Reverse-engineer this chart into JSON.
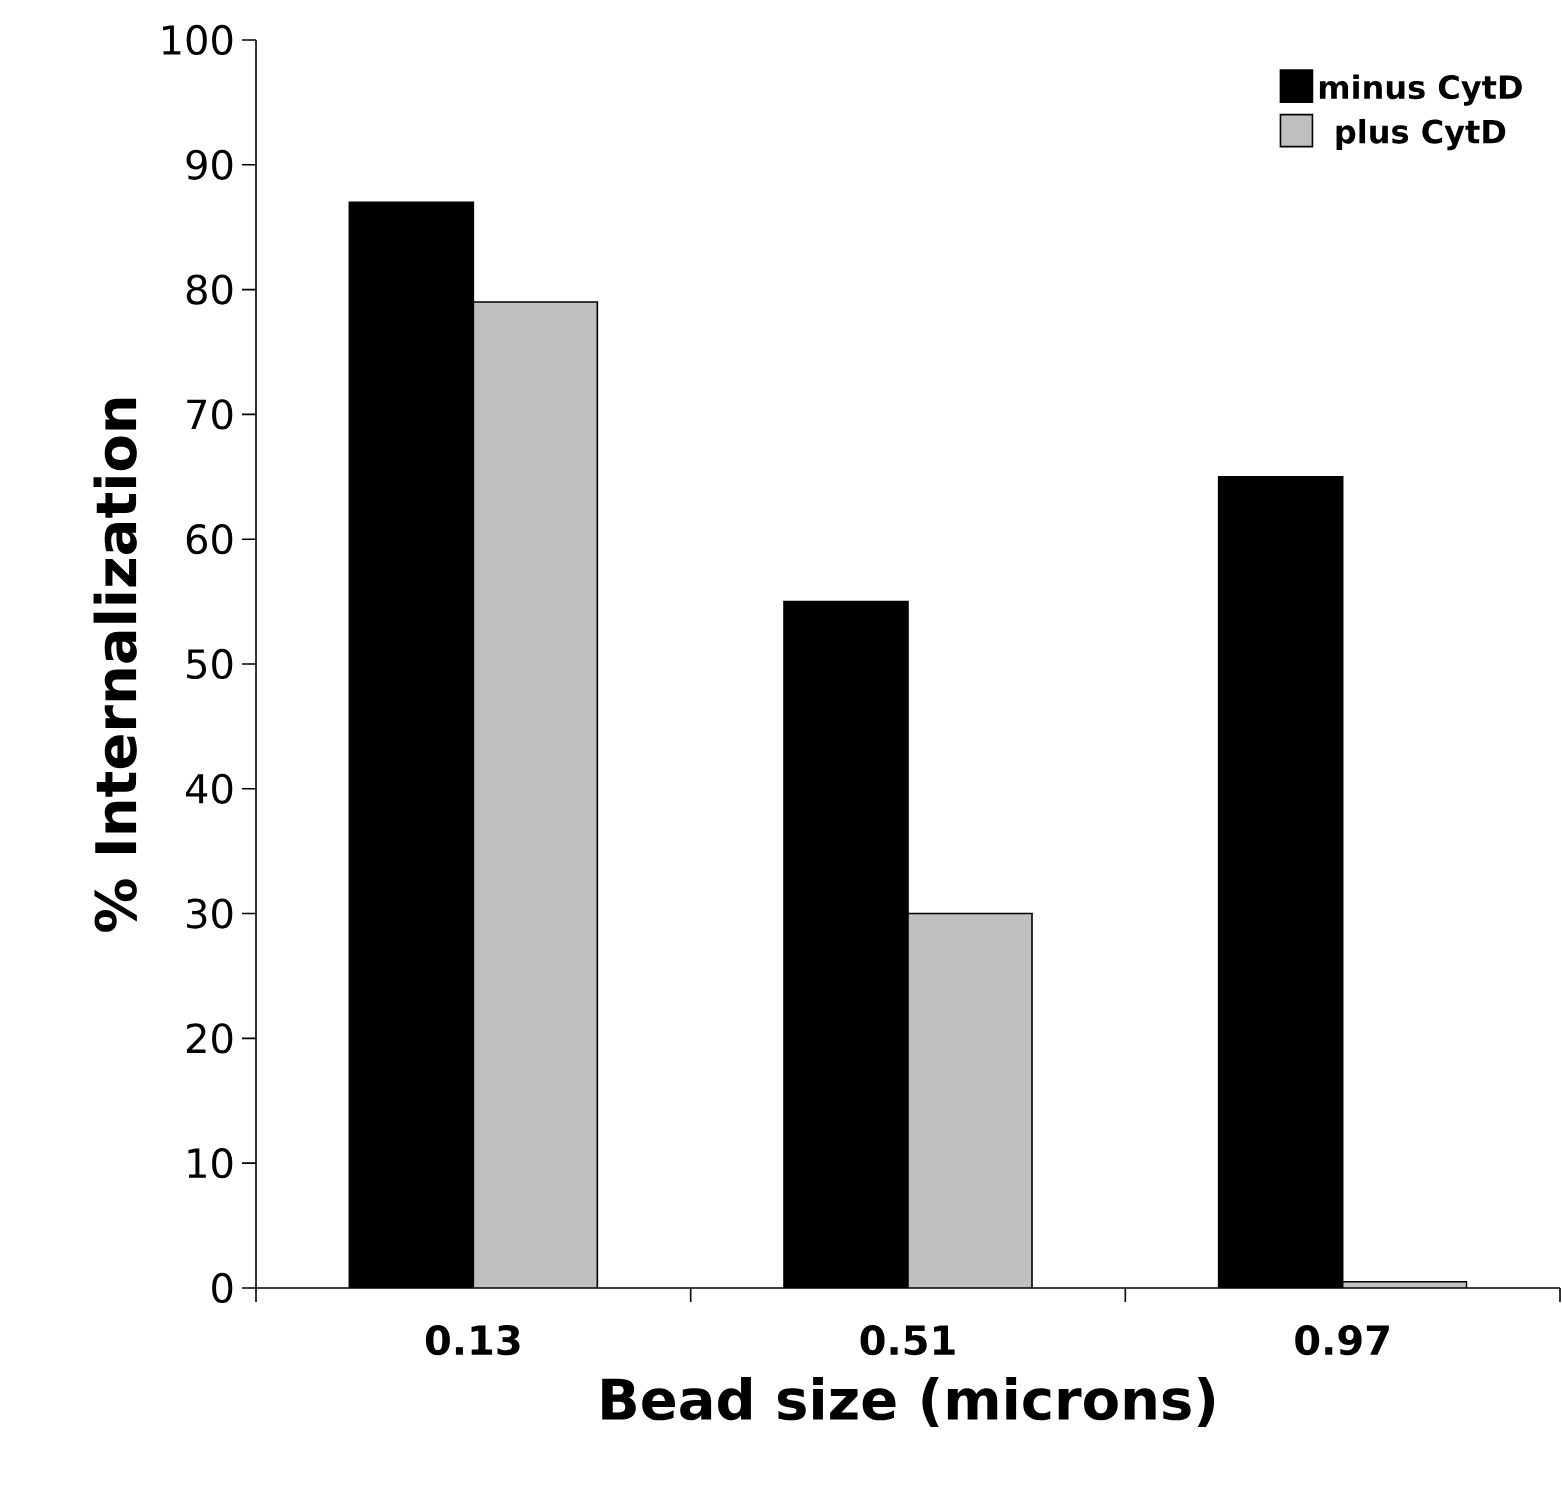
{
  "chart_data": {
    "type": "bar",
    "xlabel": "Bead size (microns)",
    "ylabel": "% Internalization",
    "categories": [
      "0.13",
      "0.51",
      "0.97"
    ],
    "series": [
      {
        "name": "minus CytD",
        "color": "#000000",
        "values": [
          87,
          55,
          65
        ]
      },
      {
        "name": "plus CytD",
        "color": "#c0c0c0",
        "values": [
          79,
          30,
          0.5
        ]
      }
    ],
    "ylim": [
      0,
      100
    ],
    "yticks": [
      0,
      10,
      20,
      30,
      40,
      50,
      60,
      70,
      80,
      90,
      100
    ],
    "grid": false,
    "legend": "top right"
  }
}
